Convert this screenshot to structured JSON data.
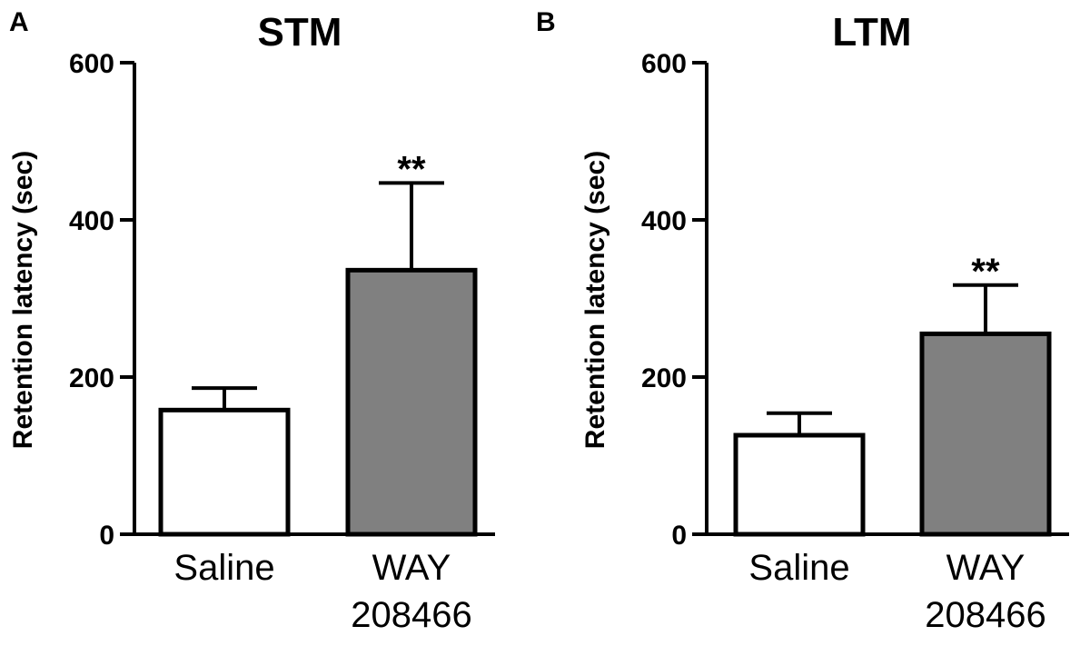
{
  "chart_data": [
    {
      "type": "bar",
      "panel": "A",
      "title": "STM",
      "xlabel": "",
      "ylabel": "Retention latency (sec)",
      "ylim": [
        0,
        600
      ],
      "yticks": [
        0,
        200,
        400,
        600
      ],
      "categories": [
        [
          "Saline"
        ],
        [
          "WAY",
          "208466"
        ]
      ],
      "values": [
        158,
        336
      ],
      "errors": [
        28,
        111
      ],
      "significance": [
        "",
        "**"
      ],
      "bar_colors": [
        "#ffffff",
        "#808080"
      ]
    },
    {
      "type": "bar",
      "panel": "B",
      "title": "LTM",
      "xlabel": "",
      "ylabel": "Retention latency (sec)",
      "ylim": [
        0,
        600
      ],
      "yticks": [
        0,
        200,
        400,
        600
      ],
      "categories": [
        [
          "Saline"
        ],
        [
          "WAY",
          "208466"
        ]
      ],
      "values": [
        126,
        255
      ],
      "errors": [
        28,
        62
      ],
      "significance": [
        "",
        "**"
      ],
      "bar_colors": [
        "#ffffff",
        "#808080"
      ]
    }
  ]
}
